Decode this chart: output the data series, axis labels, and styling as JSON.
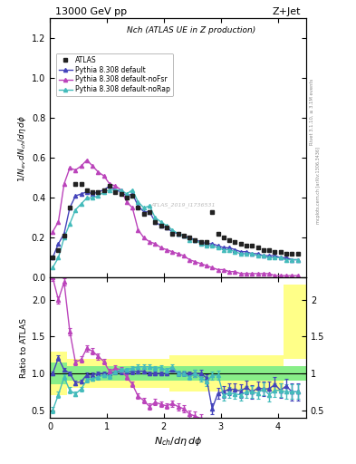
{
  "title_left": "13000 GeV pp",
  "title_right": "Z+Jet",
  "plot_title": "Nch (ATLAS UE in Z production)",
  "xlabel": "$N_{ch}/d\\eta\\,d\\phi$",
  "ylabel_main": "$1/N_{ev}\\,dN_{ch}/d\\eta\\,d\\phi$",
  "ylabel_ratio": "Ratio to ATLAS",
  "rivet_label": "Rivet 3.1.10, ≥ 3.1M events",
  "mcplots_label": "mcplots.cern.ch [arXiv:1306.3436]",
  "atlas_label": "ATLAS_2019_I1736531",
  "atlas_x": [
    0.05,
    0.15,
    0.25,
    0.35,
    0.45,
    0.55,
    0.65,
    0.75,
    0.85,
    0.95,
    1.05,
    1.15,
    1.25,
    1.35,
    1.45,
    1.55,
    1.65,
    1.75,
    1.85,
    1.95,
    2.05,
    2.15,
    2.25,
    2.35,
    2.45,
    2.55,
    2.65,
    2.75,
    2.85,
    2.95,
    3.05,
    3.15,
    3.25,
    3.35,
    3.45,
    3.55,
    3.65,
    3.75,
    3.85,
    3.95,
    4.05,
    4.15,
    4.25,
    4.35
  ],
  "atlas_y": [
    0.1,
    0.14,
    0.21,
    0.35,
    0.47,
    0.47,
    0.44,
    0.43,
    0.43,
    0.44,
    0.46,
    0.43,
    0.42,
    0.4,
    0.41,
    0.35,
    0.32,
    0.33,
    0.28,
    0.26,
    0.25,
    0.22,
    0.22,
    0.21,
    0.2,
    0.19,
    0.18,
    0.18,
    0.33,
    0.22,
    0.2,
    0.19,
    0.18,
    0.17,
    0.16,
    0.16,
    0.15,
    0.14,
    0.14,
    0.13,
    0.13,
    0.12,
    0.12,
    0.12
  ],
  "atlas_yerr": [
    0.005,
    0.005,
    0.005,
    0.007,
    0.007,
    0.007,
    0.007,
    0.007,
    0.007,
    0.007,
    0.007,
    0.007,
    0.007,
    0.007,
    0.007,
    0.007,
    0.007,
    0.007,
    0.007,
    0.007,
    0.007,
    0.007,
    0.007,
    0.007,
    0.007,
    0.007,
    0.007,
    0.007,
    0.007,
    0.007,
    0.007,
    0.007,
    0.007,
    0.007,
    0.007,
    0.007,
    0.007,
    0.007,
    0.007,
    0.007,
    0.007,
    0.007,
    0.007,
    0.007
  ],
  "py_def_x": [
    0.05,
    0.15,
    0.25,
    0.35,
    0.45,
    0.55,
    0.65,
    0.75,
    0.85,
    0.95,
    1.05,
    1.15,
    1.25,
    1.35,
    1.45,
    1.55,
    1.65,
    1.75,
    1.85,
    1.95,
    2.05,
    2.15,
    2.25,
    2.35,
    2.45,
    2.55,
    2.65,
    2.75,
    2.85,
    2.95,
    3.05,
    3.15,
    3.25,
    3.35,
    3.45,
    3.55,
    3.65,
    3.75,
    3.85,
    3.95,
    4.05,
    4.15,
    4.25,
    4.35
  ],
  "py_def_y": [
    0.1,
    0.17,
    0.22,
    0.35,
    0.41,
    0.42,
    0.43,
    0.42,
    0.43,
    0.44,
    0.46,
    0.44,
    0.43,
    0.41,
    0.42,
    0.36,
    0.33,
    0.33,
    0.28,
    0.26,
    0.25,
    0.23,
    0.22,
    0.21,
    0.2,
    0.19,
    0.18,
    0.17,
    0.17,
    0.16,
    0.15,
    0.15,
    0.14,
    0.13,
    0.13,
    0.12,
    0.12,
    0.11,
    0.11,
    0.11,
    0.1,
    0.1,
    0.09,
    0.09
  ],
  "py_nofsr_x": [
    0.05,
    0.15,
    0.25,
    0.35,
    0.45,
    0.55,
    0.65,
    0.75,
    0.85,
    0.95,
    1.05,
    1.15,
    1.25,
    1.35,
    1.45,
    1.55,
    1.65,
    1.75,
    1.85,
    1.95,
    2.05,
    2.15,
    2.25,
    2.35,
    2.45,
    2.55,
    2.65,
    2.75,
    2.85,
    2.95,
    3.05,
    3.15,
    3.25,
    3.35,
    3.45,
    3.55,
    3.65,
    3.75,
    3.85,
    3.95,
    4.05,
    4.15,
    4.25,
    4.35
  ],
  "py_nofsr_y": [
    0.23,
    0.28,
    0.47,
    0.55,
    0.54,
    0.56,
    0.59,
    0.56,
    0.53,
    0.51,
    0.47,
    0.46,
    0.44,
    0.38,
    0.35,
    0.24,
    0.2,
    0.18,
    0.17,
    0.15,
    0.14,
    0.13,
    0.12,
    0.11,
    0.09,
    0.08,
    0.07,
    0.06,
    0.05,
    0.04,
    0.04,
    0.03,
    0.03,
    0.02,
    0.02,
    0.02,
    0.02,
    0.02,
    0.02,
    0.01,
    0.01,
    0.01,
    0.01,
    0.01
  ],
  "py_norap_x": [
    0.05,
    0.15,
    0.25,
    0.35,
    0.45,
    0.55,
    0.65,
    0.75,
    0.85,
    0.95,
    1.05,
    1.15,
    1.25,
    1.35,
    1.45,
    1.55,
    1.65,
    1.75,
    1.85,
    1.95,
    2.05,
    2.15,
    2.25,
    2.35,
    2.45,
    2.55,
    2.65,
    2.75,
    2.85,
    2.95,
    3.05,
    3.15,
    3.25,
    3.35,
    3.45,
    3.55,
    3.65,
    3.75,
    3.85,
    3.95,
    4.05,
    4.15,
    4.25,
    4.35
  ],
  "py_norap_y": [
    0.05,
    0.1,
    0.2,
    0.27,
    0.34,
    0.37,
    0.4,
    0.4,
    0.41,
    0.43,
    0.44,
    0.44,
    0.44,
    0.42,
    0.44,
    0.38,
    0.35,
    0.36,
    0.3,
    0.28,
    0.26,
    0.24,
    0.22,
    0.21,
    0.19,
    0.19,
    0.17,
    0.16,
    0.16,
    0.15,
    0.14,
    0.14,
    0.13,
    0.12,
    0.12,
    0.12,
    0.11,
    0.11,
    0.1,
    0.1,
    0.1,
    0.09,
    0.09,
    0.09
  ],
  "color_def": "#4444bb",
  "color_nofsr": "#bb44bb",
  "color_norap": "#44bbbb",
  "color_atlas": "#222222",
  "ratio_def_y": [
    1.0,
    1.21,
    1.05,
    1.0,
    0.87,
    0.89,
    0.98,
    0.98,
    1.0,
    1.0,
    1.0,
    1.02,
    1.02,
    1.03,
    1.02,
    1.03,
    1.03,
    1.0,
    1.0,
    1.0,
    1.0,
    1.05,
    1.0,
    1.0,
    1.0,
    1.0,
    1.0,
    0.94,
    0.52,
    0.73,
    0.75,
    0.79,
    0.78,
    0.76,
    0.81,
    0.75,
    0.8,
    0.79,
    0.79,
    0.85,
    0.77,
    0.83,
    0.75,
    0.75
  ],
  "ratio_nofsr_y": [
    2.3,
    2.0,
    2.24,
    1.57,
    1.15,
    1.19,
    1.34,
    1.3,
    1.23,
    1.16,
    1.02,
    1.07,
    1.05,
    0.95,
    0.85,
    0.69,
    0.63,
    0.55,
    0.61,
    0.58,
    0.56,
    0.59,
    0.55,
    0.52,
    0.45,
    0.42,
    0.39,
    0.33,
    0.15,
    0.18,
    0.2,
    0.16,
    0.17,
    0.12,
    0.13,
    0.13,
    0.13,
    0.14,
    0.14,
    0.08,
    0.08,
    0.08,
    0.08,
    0.08
  ],
  "ratio_norap_y": [
    0.5,
    0.71,
    0.95,
    0.77,
    0.72,
    0.79,
    0.91,
    0.93,
    0.95,
    0.98,
    0.96,
    1.02,
    1.05,
    1.05,
    1.07,
    1.09,
    1.09,
    1.09,
    1.07,
    1.08,
    1.04,
    1.09,
    1.0,
    1.0,
    0.95,
    1.0,
    0.94,
    0.89,
    0.97,
    0.98,
    0.7,
    0.74,
    0.72,
    0.71,
    0.75,
    0.75,
    0.73,
    0.79,
    0.71,
    0.77,
    0.77,
    0.75,
    0.75,
    0.75
  ],
  "ratio_def_yerr": [
    0.03,
    0.04,
    0.03,
    0.03,
    0.03,
    0.03,
    0.03,
    0.03,
    0.03,
    0.03,
    0.03,
    0.03,
    0.03,
    0.03,
    0.03,
    0.03,
    0.03,
    0.03,
    0.03,
    0.03,
    0.03,
    0.03,
    0.03,
    0.03,
    0.03,
    0.05,
    0.05,
    0.05,
    0.07,
    0.07,
    0.08,
    0.08,
    0.08,
    0.09,
    0.09,
    0.09,
    0.09,
    0.1,
    0.1,
    0.1,
    0.1,
    0.1,
    0.12,
    0.12
  ],
  "ratio_nofsr_yerr": [
    0.05,
    0.05,
    0.05,
    0.05,
    0.04,
    0.04,
    0.04,
    0.04,
    0.04,
    0.04,
    0.04,
    0.04,
    0.04,
    0.04,
    0.04,
    0.04,
    0.04,
    0.04,
    0.04,
    0.04,
    0.04,
    0.04,
    0.05,
    0.05,
    0.05,
    0.06,
    0.06,
    0.07,
    0.08,
    0.09,
    0.09,
    0.1,
    0.1,
    0.1,
    0.1,
    0.1,
    0.1,
    0.1,
    0.1,
    0.1,
    0.1,
    0.12,
    0.12,
    0.12
  ],
  "ratio_norap_yerr": [
    0.04,
    0.04,
    0.04,
    0.04,
    0.03,
    0.03,
    0.03,
    0.03,
    0.03,
    0.03,
    0.03,
    0.03,
    0.03,
    0.03,
    0.03,
    0.03,
    0.03,
    0.03,
    0.03,
    0.03,
    0.03,
    0.03,
    0.04,
    0.04,
    0.04,
    0.05,
    0.05,
    0.06,
    0.06,
    0.06,
    0.07,
    0.07,
    0.07,
    0.08,
    0.08,
    0.08,
    0.08,
    0.09,
    0.09,
    0.09,
    0.09,
    0.1,
    0.1,
    0.1
  ],
  "band_edges": [
    0.0,
    0.1,
    0.2,
    0.3,
    0.4,
    0.5,
    0.6,
    0.7,
    0.8,
    0.9,
    1.0,
    1.1,
    1.2,
    1.3,
    1.4,
    1.5,
    1.6,
    1.7,
    1.8,
    1.9,
    2.0,
    2.1,
    2.2,
    2.3,
    2.4,
    2.5,
    2.6,
    2.7,
    2.8,
    2.9,
    3.0,
    3.1,
    3.2,
    3.3,
    3.4,
    3.5,
    3.6,
    3.7,
    3.8,
    3.9,
    4.0,
    4.1,
    4.2,
    4.3,
    4.4,
    4.5
  ],
  "band_green_lo": [
    0.85,
    0.85,
    0.85,
    0.9,
    0.9,
    0.9,
    0.9,
    0.9,
    0.9,
    0.9,
    0.9,
    0.9,
    0.9,
    0.9,
    0.9,
    0.9,
    0.9,
    0.9,
    0.9,
    0.9,
    0.9,
    0.9,
    0.9,
    0.9,
    0.9,
    0.9,
    0.9,
    0.9,
    0.9,
    0.9,
    0.9,
    0.9,
    0.9,
    0.9,
    0.9,
    0.9,
    0.9,
    0.9,
    0.9,
    0.9,
    0.9,
    0.9,
    0.9,
    0.9,
    0.9
  ],
  "band_green_hi": [
    1.15,
    1.15,
    1.15,
    1.1,
    1.1,
    1.1,
    1.1,
    1.1,
    1.1,
    1.1,
    1.1,
    1.1,
    1.1,
    1.1,
    1.1,
    1.1,
    1.1,
    1.1,
    1.1,
    1.1,
    1.1,
    1.1,
    1.1,
    1.1,
    1.1,
    1.1,
    1.1,
    1.1,
    1.1,
    1.1,
    1.1,
    1.1,
    1.1,
    1.1,
    1.1,
    1.1,
    1.1,
    1.1,
    1.1,
    1.1,
    1.1,
    1.1,
    1.1,
    1.1,
    1.1
  ],
  "band_yellow_lo": [
    0.7,
    0.7,
    0.7,
    0.8,
    0.8,
    0.8,
    0.8,
    0.8,
    0.8,
    0.8,
    0.8,
    0.8,
    0.8,
    0.8,
    0.8,
    0.8,
    0.8,
    0.8,
    0.8,
    0.8,
    0.8,
    0.75,
    0.75,
    0.75,
    0.75,
    0.75,
    0.75,
    0.75,
    0.75,
    0.75,
    0.75,
    0.75,
    0.75,
    0.75,
    0.75,
    0.75,
    0.75,
    0.75,
    0.75,
    0.75,
    0.75,
    1.2,
    1.2,
    1.2,
    1.2
  ],
  "band_yellow_hi": [
    1.3,
    1.3,
    1.3,
    1.2,
    1.2,
    1.2,
    1.2,
    1.2,
    1.2,
    1.2,
    1.2,
    1.2,
    1.2,
    1.2,
    1.2,
    1.2,
    1.2,
    1.2,
    1.2,
    1.2,
    1.2,
    1.25,
    1.25,
    1.25,
    1.25,
    1.25,
    1.25,
    1.25,
    1.25,
    1.25,
    1.25,
    1.25,
    1.25,
    1.25,
    1.25,
    1.25,
    1.25,
    1.25,
    1.25,
    1.25,
    1.25,
    2.2,
    2.2,
    2.2,
    2.2
  ],
  "xlim": [
    0,
    4.5
  ],
  "ylim_main": [
    0.0,
    1.3
  ],
  "ylim_ratio": [
    0.4,
    2.3
  ],
  "yticks_main": [
    0,
    0.2,
    0.4,
    0.6,
    0.8,
    1.0,
    1.2
  ],
  "yticks_ratio": [
    0.5,
    1.0,
    1.5,
    2.0
  ],
  "xticks": [
    0,
    1,
    2,
    3,
    4
  ]
}
